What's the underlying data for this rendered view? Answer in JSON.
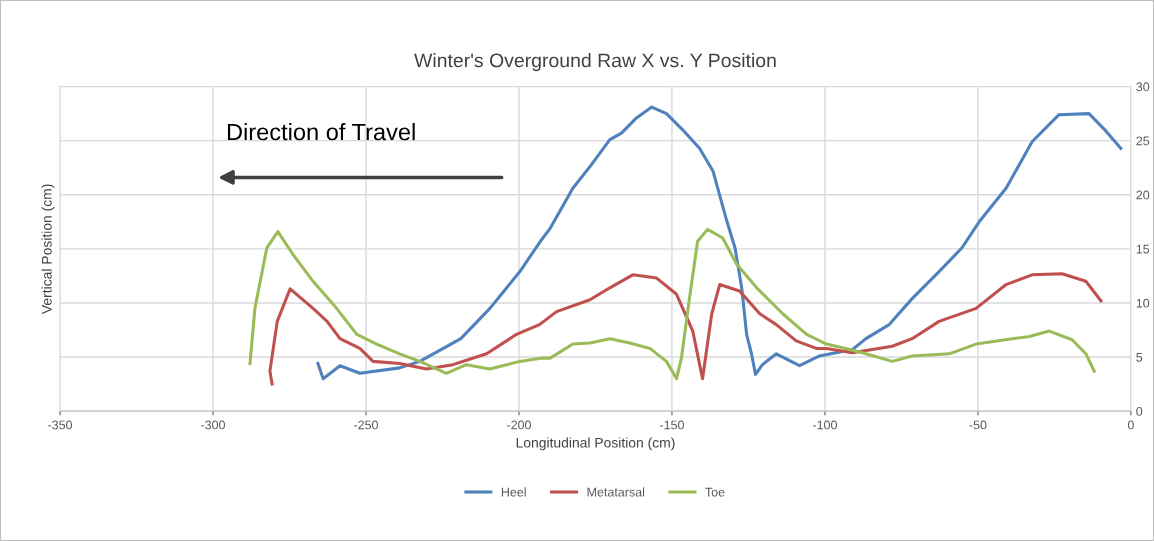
{
  "chart_data": {
    "type": "line",
    "title": "Winter's Overground Raw X vs. Y Position",
    "xlabel": "Longitudinal Position (cm)",
    "ylabel": "Vertical Position (cm)",
    "annotations": [
      "Direction of Travel"
    ],
    "xlim": [
      -350,
      0
    ],
    "xticks": [
      -350,
      -300,
      -250,
      -200,
      -150,
      -100,
      -50,
      0
    ],
    "ylim": [
      0,
      30
    ],
    "yticks": [
      0,
      5,
      10,
      15,
      20,
      25,
      30
    ],
    "grid": true,
    "legend": "bottom",
    "marker": "none",
    "line_style": "solid",
    "series": [
      {
        "name": "Heel",
        "color": "#4f81bd",
        "x": [
          -265.7,
          -264,
          -258.5,
          -252,
          -239,
          -232.4,
          -219,
          -209.5,
          -199.7,
          -193,
          -189.8,
          -182.4,
          -176.8,
          -170.3,
          -166.5,
          -161.6,
          -156.6,
          -151.8,
          -146.5,
          -141,
          -136.6,
          -132,
          -129.4,
          -127.2,
          -125.6,
          -124,
          -122.7,
          -120.4,
          -115.9,
          -108.3,
          -101.8,
          -91,
          -86.6,
          -79,
          -71.5,
          -62.7,
          -55.2,
          -49.6,
          -40.8,
          -32.3,
          -23.5,
          -13.7,
          -8.2,
          -3.3
        ],
        "values": [
          4.4,
          3.0,
          4.2,
          3.5,
          4.0,
          4.6,
          6.7,
          9.5,
          12.9,
          15.7,
          16.9,
          20.6,
          22.6,
          25.1,
          25.7,
          27.1,
          28.1,
          27.5,
          26.0,
          24.3,
          22.2,
          17.5,
          15.1,
          11.4,
          7.1,
          5.3,
          3.4,
          4.3,
          5.3,
          4.2,
          5.1,
          5.7,
          6.7,
          8.0,
          10.4,
          12.9,
          15.1,
          17.5,
          20.6,
          24.9,
          27.4,
          27.5,
          25.9,
          24.3
        ]
      },
      {
        "name": "Metatarsal",
        "color": "#c0504d",
        "x": [
          -280.7,
          -281.4,
          -279,
          -274.8,
          -267.3,
          -262.7,
          -258.5,
          -252,
          -247.7,
          -239,
          -230.2,
          -221.6,
          -210.6,
          -200.8,
          -193.3,
          -187.7,
          -176.8,
          -170.3,
          -162.8,
          -155,
          -148.5,
          -143.2,
          -140,
          -137,
          -134.4,
          -127.9,
          -121.3,
          -115.9,
          -109.4,
          -102.8,
          -99.5,
          -91,
          -78,
          -71.5,
          -62.7,
          -50.6,
          -40.8,
          -32.3,
          -22.5,
          -14.7,
          -9.8
        ],
        "values": [
          2.5,
          3.7,
          8.3,
          11.3,
          9.5,
          8.3,
          6.7,
          5.8,
          4.6,
          4.4,
          3.9,
          4.3,
          5.3,
          7.1,
          8.0,
          9.2,
          10.3,
          11.4,
          12.6,
          12.3,
          10.8,
          7.4,
          3.0,
          9.0,
          11.7,
          11.1,
          9.0,
          8.0,
          6.5,
          5.8,
          5.8,
          5.4,
          6.0,
          6.7,
          8.3,
          9.5,
          11.7,
          12.6,
          12.7,
          12.0,
          10.2
        ]
      },
      {
        "name": "Toe",
        "color": "#9bbb59",
        "x": [
          -287.9,
          -286.3,
          -282.4,
          -278.8,
          -273.9,
          -267.3,
          -259.6,
          -253,
          -246.5,
          -239,
          -232.4,
          -223.7,
          -217.2,
          -209.5,
          -199.7,
          -193,
          -189.8,
          -182.4,
          -176.8,
          -170.3,
          -163.8,
          -157.2,
          -151.8,
          -148.5,
          -146.9,
          -144.3,
          -141.6,
          -138.4,
          -133.4,
          -128.9,
          -122.3,
          -113.8,
          -106,
          -99.5,
          -93.2,
          -86.6,
          -78,
          -71.5,
          -59.4,
          -50.6,
          -38.8,
          -33.2,
          -26.7,
          -19.2,
          -14.7,
          -12
        ],
        "values": [
          4.4,
          9.5,
          15.1,
          16.6,
          14.5,
          12.0,
          9.5,
          7.1,
          6.2,
          5.3,
          4.6,
          3.5,
          4.3,
          3.9,
          4.6,
          4.9,
          4.9,
          6.2,
          6.3,
          6.7,
          6.3,
          5.8,
          4.6,
          3.0,
          4.9,
          10.4,
          15.7,
          16.8,
          16.0,
          13.6,
          11.4,
          9.0,
          7.1,
          6.2,
          5.8,
          5.3,
          4.6,
          5.1,
          5.3,
          6.2,
          6.7,
          6.9,
          7.4,
          6.6,
          5.3,
          3.7
        ]
      }
    ]
  }
}
